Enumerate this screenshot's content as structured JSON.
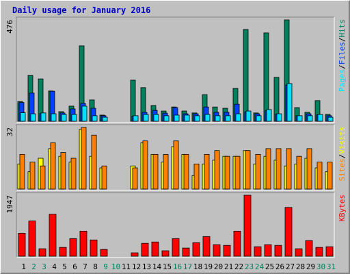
{
  "chart_data": [
    {
      "type": "bar",
      "title": "Daily usage for January 2016",
      "ylim": [
        0,
        476
      ],
      "yticks": [
        476
      ],
      "legend_separator": "/",
      "series": [
        {
          "name": "Hits",
          "color": "#00805c",
          "values": [
            92,
            215,
            199,
            142,
            45,
            71,
            354,
            100,
            29,
            0,
            0,
            193,
            158,
            74,
            48,
            67,
            48,
            39,
            125,
            67,
            61,
            154,
            431,
            39,
            415,
            206,
            476,
            64,
            42,
            97,
            32
          ]
        },
        {
          "name": "Files",
          "color": "#0040ff",
          "values": [
            88,
            132,
            36,
            141,
            39,
            58,
            84,
            61,
            26,
            0,
            0,
            24,
            42,
            51,
            38,
            64,
            35,
            35,
            67,
            42,
            42,
            80,
            44,
            35,
            50,
            34,
            170,
            26,
            35,
            30,
            26
          ]
        },
        {
          "name": "Pages",
          "color": "#00e0ff",
          "values": [
            40,
            35,
            39,
            35,
            32,
            32,
            71,
            26,
            19,
            0,
            0,
            26,
            32,
            32,
            26,
            29,
            29,
            26,
            32,
            26,
            26,
            35,
            48,
            26,
            55,
            35,
            177,
            26,
            26,
            32,
            19
          ]
        }
      ]
    },
    {
      "type": "bar",
      "ylim": [
        0,
        32
      ],
      "yticks": [
        32
      ],
      "legend_separator": "/",
      "series": [
        {
          "name": "Visits",
          "color": "#ffff00",
          "values": [
            13,
            9,
            16,
            21,
            17,
            14,
            31,
            17,
            11,
            0,
            0,
            12,
            24,
            18,
            14,
            22,
            18,
            7,
            13,
            15,
            17,
            17,
            20,
            13,
            17,
            15,
            12,
            13,
            16,
            11,
            9
          ]
        },
        {
          "name": "Sites",
          "color": "#ff8000",
          "values": [
            18,
            14,
            12,
            24,
            19,
            16,
            32,
            28,
            12,
            0,
            0,
            11,
            25,
            18,
            18,
            25,
            18,
            13,
            18,
            20,
            17,
            17,
            20,
            18,
            21,
            21,
            21,
            17,
            21,
            14,
            14
          ]
        }
      ]
    },
    {
      "type": "bar",
      "ylim": [
        0,
        1947
      ],
      "yticks": [
        1947
      ],
      "series": [
        {
          "name": "KBytes",
          "color": "#ff0000",
          "values": [
            736,
            1125,
            238,
            1341,
            281,
            562,
            800,
            519,
            216,
            0,
            0,
            108,
            411,
            454,
            173,
            562,
            260,
            433,
            627,
            368,
            346,
            800,
            1947,
            303,
            368,
            346,
            1558,
            238,
            498,
            281,
            303
          ]
        }
      ],
      "categories": [
        "1",
        "2",
        "3",
        "4",
        "5",
        "6",
        "7",
        "8",
        "9",
        "10",
        "11",
        "12",
        "13",
        "14",
        "15",
        "16",
        "17",
        "18",
        "19",
        "20",
        "21",
        "22",
        "23",
        "24",
        "25",
        "26",
        "27",
        "28",
        "29",
        "30",
        "31"
      ],
      "category_colors": [
        "#000000",
        "#00805c",
        "#00805c",
        "#000000",
        "#000000",
        "#000000",
        "#000000",
        "#000000",
        "#00805c",
        "#00805c",
        "#000000",
        "#000000",
        "#000000",
        "#000000",
        "#000000",
        "#00805c",
        "#00805c",
        "#000000",
        "#000000",
        "#000000",
        "#000000",
        "#000000",
        "#00805c",
        "#00805c",
        "#000000",
        "#000000",
        "#000000",
        "#000000",
        "#000000",
        "#00805c",
        "#00805c"
      ]
    }
  ]
}
